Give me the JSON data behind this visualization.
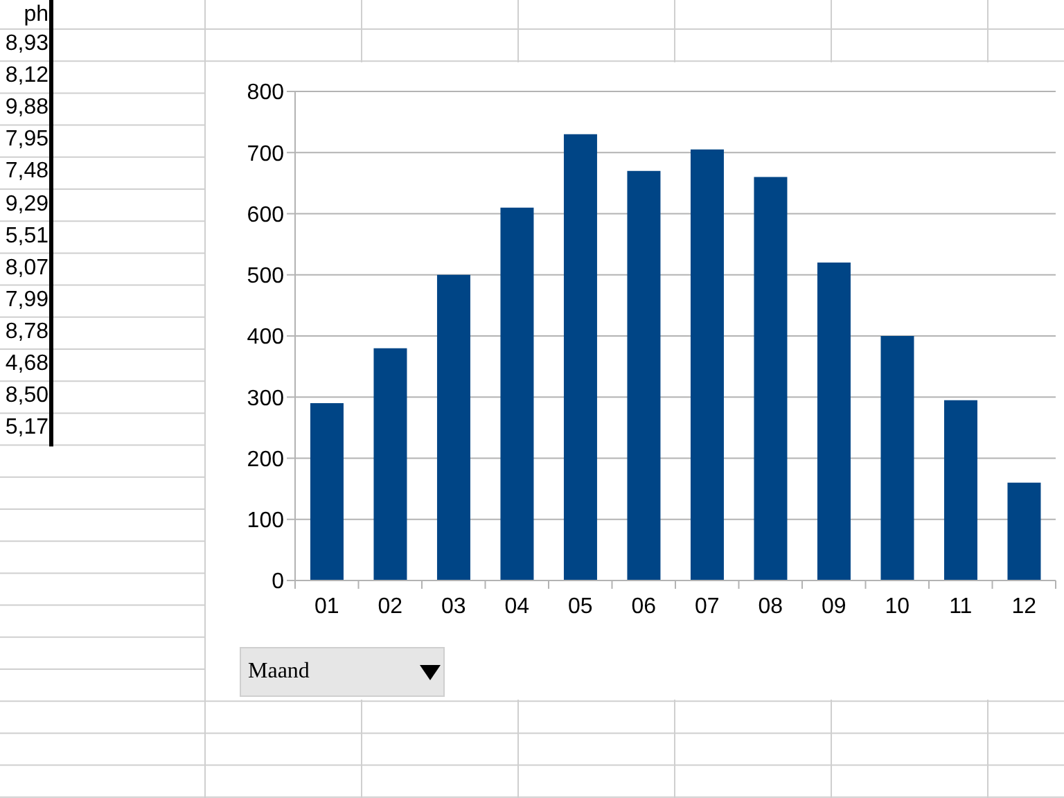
{
  "chart_data": {
    "type": "bar",
    "categories": [
      "01",
      "02",
      "03",
      "04",
      "05",
      "06",
      "07",
      "08",
      "09",
      "10",
      "11",
      "12"
    ],
    "values": [
      290,
      380,
      500,
      610,
      730,
      670,
      705,
      660,
      520,
      400,
      295,
      160
    ],
    "color": "#004586",
    "ylim": [
      0,
      800
    ],
    "yticks": [
      0,
      100,
      200,
      300,
      400,
      500,
      600,
      700,
      800
    ],
    "grid": "y",
    "xlabel": "Maand",
    "annotations": [
      "ph",
      "8,93",
      "8,12",
      "9,88",
      "7,95",
      "7,48",
      "9,29",
      "5,51",
      "8,07",
      "7,99",
      "8,78",
      "4,68",
      "8,50",
      "5,17"
    ]
  }
}
